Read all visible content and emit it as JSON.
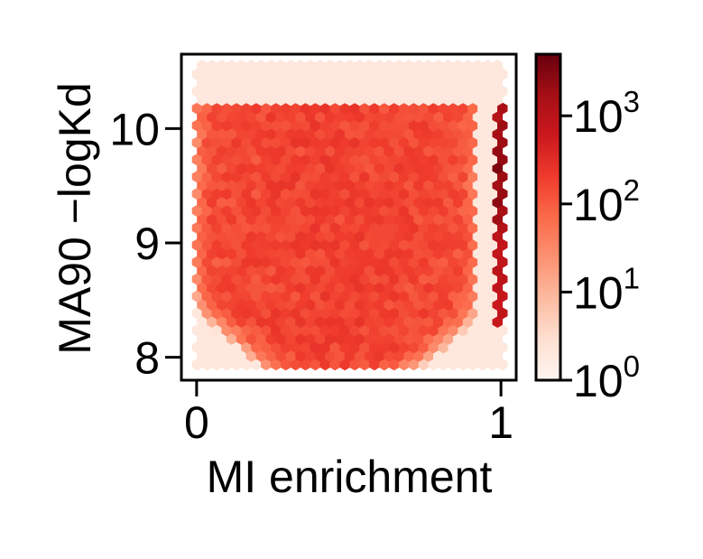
{
  "chart_data": {
    "type": "heatmap",
    "subtype": "hexbin",
    "title": "",
    "xlabel": "MI enrichment",
    "ylabel": "MA90 −logKd",
    "xlim": [
      -0.05,
      1.05
    ],
    "ylim": [
      7.8,
      10.65
    ],
    "x_ticks": [
      {
        "value": 0,
        "label": "0"
      },
      {
        "value": 1,
        "label": "1"
      }
    ],
    "y_ticks": [
      {
        "value": 8,
        "label": "8"
      },
      {
        "value": 9,
        "label": "9"
      },
      {
        "value": 10,
        "label": "10"
      }
    ],
    "colorbar": {
      "scale": "log",
      "colormap": "Reds",
      "range": [
        1,
        5000
      ],
      "ticks": [
        {
          "value": 1,
          "base": "10",
          "exp": "0"
        },
        {
          "value": 10,
          "base": "10",
          "exp": "1"
        },
        {
          "value": 100,
          "base": "10",
          "exp": "2"
        },
        {
          "value": 1000,
          "base": "10",
          "exp": "3"
        }
      ]
    },
    "density_model": {
      "main_region": {
        "x_range": [
          0.0,
          0.9
        ],
        "y_range": [
          8.1,
          10.2
        ],
        "peak_count": 220
      },
      "dense_column": {
        "x": 1.0,
        "y_range": [
          8.3,
          10.2
        ],
        "peak_count": 3000
      },
      "sparse_region": {
        "x_range": [
          0.0,
          1.0
        ],
        "y_range": [
          7.9,
          10.55
        ],
        "count": 2
      }
    },
    "grid": false,
    "legend": "none"
  }
}
